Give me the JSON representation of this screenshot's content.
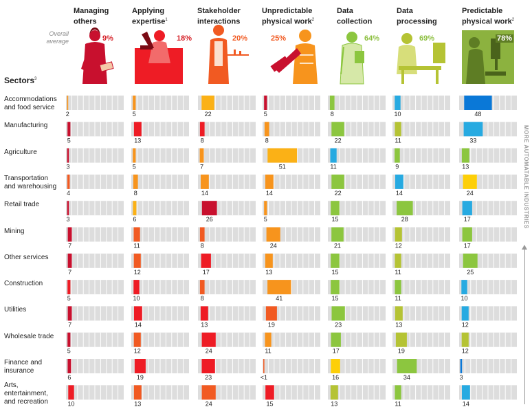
{
  "overall_average_label": "Overall average",
  "sectors_title": "Sectors",
  "sectors_title_sup": "3",
  "side_label": "MORE AUTOMATABLE INDUSTRIES",
  "colors": {
    "dark_red": "#c8102e",
    "red": "#ee1c25",
    "orange_red": "#f15a22",
    "orange": "#f7941d",
    "amber": "#fbb116",
    "olive": "#8cc63f",
    "lime": "#b5c334",
    "light_blue": "#27aae1",
    "blue": "#0a78d7",
    "yellow": "#fdcf08",
    "grid_bg": "#dddddd",
    "pct_red": "#d51f26",
    "pct_green": "#8cbf3f"
  },
  "columns": [
    {
      "title_line1": "Managing",
      "title_line2": "others",
      "sup": "",
      "avg": "9%",
      "icon": "businesswoman-figure"
    },
    {
      "title_line1": "Applying",
      "title_line2": "expertise",
      "sup": "1",
      "avg": "18%",
      "icon": "scientist-microscope-figure"
    },
    {
      "title_line1": "Stakeholder",
      "title_line2": "interactions",
      "sup": "",
      "avg": "20%",
      "icon": "waiter-tray-figure"
    },
    {
      "title_line1": "Unpredictable",
      "title_line2": "physical work",
      "sup": "2",
      "avg": "25%",
      "icon": "worker-chainsaw-figure"
    },
    {
      "title_line1": "Data",
      "title_line2": "collection",
      "sup": "",
      "avg": "64%",
      "icon": "man-clipboard-figure"
    },
    {
      "title_line1": "Data",
      "title_line2": "processing",
      "sup": "",
      "avg": "69%",
      "icon": "woman-computer-figure"
    },
    {
      "title_line1": "Predictable",
      "title_line2": "physical work",
      "sup": "2",
      "avg": "78%",
      "icon": "machinist-drill-figure"
    }
  ],
  "chart_data": {
    "type": "heatmap",
    "description_unit": "share of time spent on activity (%)",
    "x_range": [
      0,
      100
    ],
    "columns": [
      "Managing others",
      "Applying expertise",
      "Stakeholder interactions",
      "Unpredictable physical work",
      "Data collection",
      "Data processing",
      "Predictable physical work"
    ],
    "rows": [
      {
        "sector_line1": "Accommodations",
        "sector_line2": "and food service",
        "sector_line3": "",
        "values": [
          2,
          5,
          22,
          5,
          8,
          10,
          48
        ],
        "labels": [
          "2",
          "5",
          "22",
          "5",
          "8",
          "10",
          "48"
        ],
        "colors": [
          "#f7941d",
          "#f7941d",
          "#fbb116",
          "#c8102e",
          "#8cc63f",
          "#27aae1",
          "#0a78d7"
        ]
      },
      {
        "sector_line1": "Manufacturing",
        "sector_line2": "",
        "sector_line3": "",
        "values": [
          5,
          13,
          8,
          8,
          22,
          11,
          33
        ],
        "labels": [
          "5",
          "13",
          "8",
          "8",
          "22",
          "11",
          "33"
        ],
        "colors": [
          "#c8102e",
          "#ee1c25",
          "#ee1c25",
          "#f7941d",
          "#8cc63f",
          "#b5c334",
          "#27aae1"
        ]
      },
      {
        "sector_line1": "Agriculture",
        "sector_line2": "",
        "sector_line3": "",
        "values": [
          3,
          5,
          7,
          51,
          11,
          9,
          13
        ],
        "labels": [
          "3",
          "5",
          "7",
          "51",
          "11",
          "9",
          "13"
        ],
        "colors": [
          "#c8102e",
          "#f7941d",
          "#f7941d",
          "#fbb116",
          "#27aae1",
          "#8cc63f",
          "#8cc63f"
        ]
      },
      {
        "sector_line1": "Transportation",
        "sector_line2": "and warehousing",
        "sector_line3": "",
        "values": [
          4,
          8,
          14,
          14,
          22,
          14,
          24
        ],
        "labels": [
          "4",
          "8",
          "14",
          "14",
          "22",
          "14",
          "24"
        ],
        "colors": [
          "#f15a22",
          "#f7941d",
          "#f7941d",
          "#f7941d",
          "#8cc63f",
          "#27aae1",
          "#fdcf08"
        ]
      },
      {
        "sector_line1": "Retail trade",
        "sector_line2": "",
        "sector_line3": "",
        "values": [
          3,
          6,
          26,
          5,
          15,
          28,
          17
        ],
        "labels": [
          "3",
          "6",
          "26",
          "5",
          "15",
          "28",
          "17"
        ],
        "colors": [
          "#c8102e",
          "#fbb116",
          "#c8102e",
          "#f7941d",
          "#8cc63f",
          "#8cc63f",
          "#27aae1"
        ]
      },
      {
        "sector_line1": "Mining",
        "sector_line2": "",
        "sector_line3": "",
        "values": [
          7,
          11,
          8,
          24,
          21,
          12,
          17
        ],
        "labels": [
          "7",
          "11",
          "8",
          "24",
          "21",
          "12",
          "17"
        ],
        "colors": [
          "#c8102e",
          "#f15a22",
          "#f15a22",
          "#f7941d",
          "#8cc63f",
          "#b5c334",
          "#8cc63f"
        ]
      },
      {
        "sector_line1": "Other services",
        "sector_line2": "",
        "sector_line3": "",
        "values": [
          7,
          12,
          17,
          13,
          15,
          11,
          25
        ],
        "labels": [
          "7",
          "12",
          "17",
          "13",
          "15",
          "11",
          "25"
        ],
        "colors": [
          "#c8102e",
          "#f15a22",
          "#ee1c25",
          "#f7941d",
          "#8cc63f",
          "#b5c334",
          "#8cc63f"
        ]
      },
      {
        "sector_line1": "Construction",
        "sector_line2": "",
        "sector_line3": "",
        "values": [
          5,
          10,
          8,
          41,
          15,
          11,
          10
        ],
        "labels": [
          "5",
          "10",
          "8",
          "41",
          "15",
          "11",
          "10"
        ],
        "colors": [
          "#ee1c25",
          "#ee1c25",
          "#f15a22",
          "#f7941d",
          "#8cc63f",
          "#8cc63f",
          "#27aae1"
        ]
      },
      {
        "sector_line1": "Utilities",
        "sector_line2": "",
        "sector_line3": "",
        "values": [
          7,
          14,
          13,
          19,
          23,
          13,
          12
        ],
        "labels": [
          "7",
          "14",
          "13",
          "19",
          "23",
          "13",
          "12"
        ],
        "colors": [
          "#c8102e",
          "#ee1c25",
          "#ee1c25",
          "#f15a22",
          "#8cc63f",
          "#b5c334",
          "#27aae1"
        ]
      },
      {
        "sector_line1": "Wholesale trade",
        "sector_line2": "",
        "sector_line3": "",
        "values": [
          5,
          12,
          24,
          11,
          17,
          19,
          12
        ],
        "labels": [
          "5",
          "12",
          "24",
          "11",
          "17",
          "19",
          "12"
        ],
        "colors": [
          "#c8102e",
          "#f15a22",
          "#ee1c25",
          "#f7941d",
          "#8cc63f",
          "#b5c334",
          "#b5c334"
        ]
      },
      {
        "sector_line1": "Finance and",
        "sector_line2": "insurance",
        "sector_line3": "",
        "values": [
          6,
          19,
          23,
          0.5,
          16,
          34,
          3
        ],
        "labels": [
          "6",
          "19",
          "23",
          "<1",
          "16",
          "34",
          "3"
        ],
        "colors": [
          "#c8102e",
          "#ee1c25",
          "#ee1c25",
          "#f15a22",
          "#fdcf08",
          "#8cc63f",
          "#0a78d7"
        ]
      },
      {
        "sector_line1": "Arts,",
        "sector_line2": "entertainment,",
        "sector_line3": "and recreation",
        "values": [
          10,
          13,
          24,
          15,
          13,
          11,
          14
        ],
        "labels": [
          "10",
          "13",
          "24",
          "15",
          "13",
          "11",
          "14"
        ],
        "colors": [
          "#ee1c25",
          "#f15a22",
          "#f15a22",
          "#ee1c25",
          "#b5c334",
          "#8cc63f",
          "#27aae1"
        ]
      }
    ]
  }
}
